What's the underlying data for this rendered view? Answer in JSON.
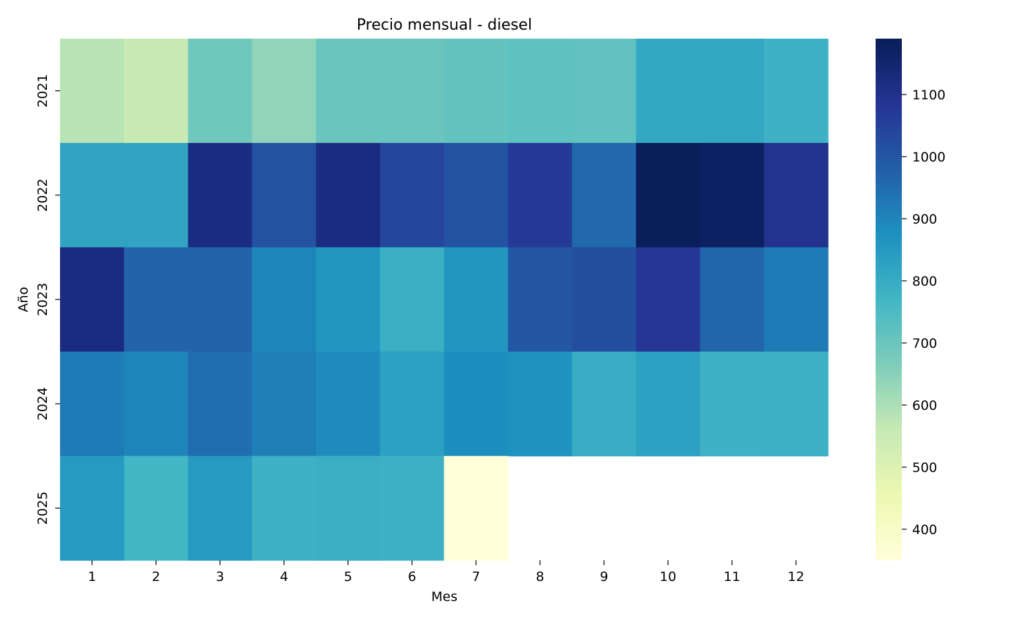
{
  "chart_data": {
    "type": "heatmap",
    "title": "Precio mensual - diesel",
    "xlabel": "Mes",
    "ylabel": "Año",
    "x_categories": [
      "1",
      "2",
      "3",
      "4",
      "5",
      "6",
      "7",
      "8",
      "9",
      "10",
      "11",
      "12"
    ],
    "y_categories": [
      "2021",
      "2022",
      "2023",
      "2024",
      "2025"
    ],
    "values": [
      [
        580,
        555,
        690,
        640,
        700,
        700,
        710,
        720,
        715,
        810,
        810,
        780
      ],
      [
        820,
        820,
        1120,
        1010,
        1120,
        1040,
        1010,
        1070,
        960,
        1185,
        1175,
        1095
      ],
      [
        1120,
        970,
        970,
        900,
        860,
        790,
        860,
        1000,
        1020,
        1080,
        965,
        920
      ],
      [
        920,
        900,
        950,
        910,
        890,
        830,
        880,
        870,
        795,
        830,
        780,
        785
      ],
      [
        850,
        770,
        850,
        780,
        790,
        780,
        350,
        null,
        null,
        null,
        null,
        null
      ]
    ],
    "colorbar": {
      "min": 350,
      "max": 1190,
      "ticks": [
        400,
        500,
        600,
        700,
        800,
        900,
        1000,
        1100
      ],
      "colormap": "YlGnBu"
    },
    "colormap_stops": [
      "#ffffd9",
      "#edf8b1",
      "#c7e9b4",
      "#7fcdbb",
      "#41b6c4",
      "#1d91c0",
      "#225ea8",
      "#253494",
      "#081d58"
    ]
  }
}
